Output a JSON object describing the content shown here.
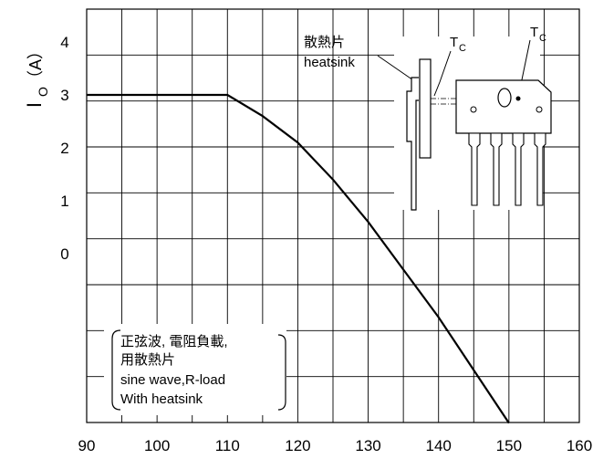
{
  "chart_data": {
    "type": "line",
    "title": "",
    "xlabel": "",
    "ylabel": {
      "main": "I",
      "sub": "O",
      "unit": "（A）"
    },
    "x_ticks": [
      "90",
      "100",
      "110",
      "120",
      "130",
      "140",
      "150",
      "160"
    ],
    "y_ticks": [
      "4",
      "3",
      "2",
      "1",
      "0"
    ],
    "xlim": [
      90,
      160
    ],
    "grid": true,
    "series": [
      {
        "x": [
          90,
          110,
          115,
          120,
          125,
          130,
          135,
          140,
          145,
          150
        ],
        "y": [
          3.0,
          3.0,
          2.6,
          2.1,
          1.4,
          0.6,
          -0.3,
          -1.2,
          -2.2,
          -3.2
        ]
      }
    ],
    "annotations": {
      "heatsink_cn": "散熱片",
      "heatsink_en": "heatsink",
      "tc_main": "T",
      "tc_sub": "C",
      "note": [
        "正弦波, 電阻負載,",
        "用散熱片",
        "sine wave,R-load",
        "With heatsink"
      ]
    }
  }
}
